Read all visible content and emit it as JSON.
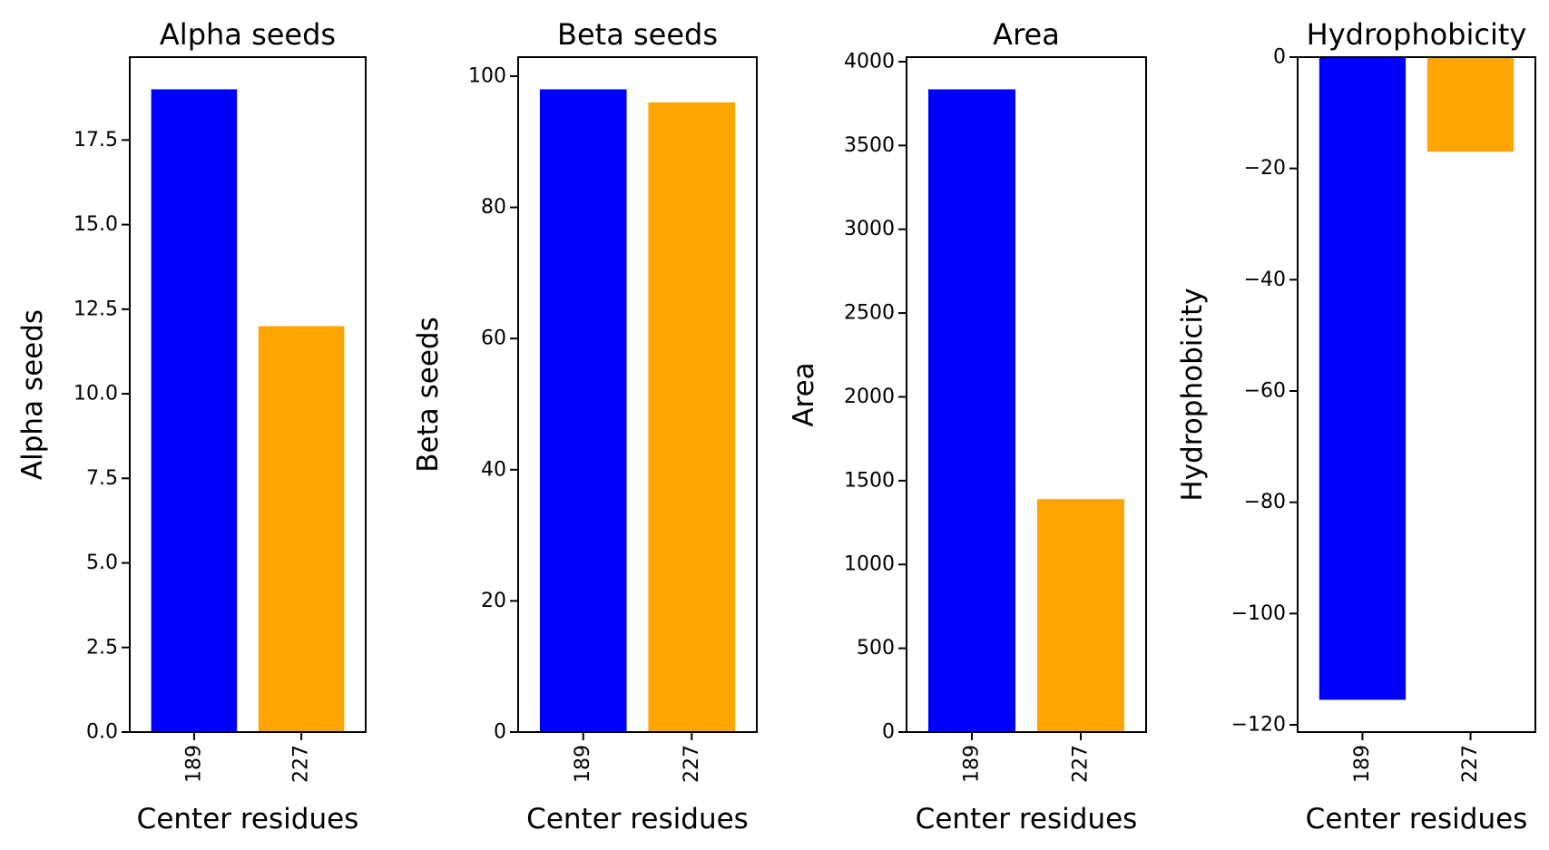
{
  "colors": {
    "series": [
      "#0000ff",
      "#ffa500"
    ],
    "axes": "#000000",
    "background": "#ffffff"
  },
  "chart_data": [
    {
      "type": "bar",
      "title": "Alpha seeds",
      "xlabel": "Center residues",
      "ylabel": "Alpha seeds",
      "categories": [
        "189",
        "227"
      ],
      "values": [
        19,
        12
      ],
      "ylim": [
        0,
        19.95
      ],
      "yticks": [
        0,
        2.5,
        5,
        7.5,
        10,
        12.5,
        15,
        17.5
      ],
      "ytick_labels": [
        "0.0",
        "2.5",
        "5.0",
        "7.5",
        "10.0",
        "12.5",
        "15.0",
        "17.5"
      ],
      "grid": false
    },
    {
      "type": "bar",
      "title": "Beta seeds",
      "xlabel": "Center residues",
      "ylabel": "Beta seeds",
      "categories": [
        "189",
        "227"
      ],
      "values": [
        98,
        96
      ],
      "ylim": [
        0,
        102.9
      ],
      "yticks": [
        0,
        20,
        40,
        60,
        80,
        100
      ],
      "ytick_labels": [
        "0",
        "20",
        "40",
        "60",
        "80",
        "100"
      ],
      "grid": false
    },
    {
      "type": "bar",
      "title": "Area",
      "xlabel": "Center residues",
      "ylabel": "Area",
      "categories": [
        "189",
        "227"
      ],
      "values": [
        3835,
        1390
      ],
      "ylim": [
        0,
        4027
      ],
      "yticks": [
        0,
        500,
        1000,
        1500,
        2000,
        2500,
        3000,
        3500,
        4000
      ],
      "ytick_labels": [
        "0",
        "500",
        "1000",
        "1500",
        "2000",
        "2500",
        "3000",
        "3500",
        "4000"
      ],
      "grid": false
    },
    {
      "type": "bar",
      "title": "Hydrophobicity",
      "xlabel": "Center residues",
      "ylabel": "Hydrophobicity",
      "categories": [
        "189",
        "227"
      ],
      "values": [
        -115.5,
        -17
      ],
      "ylim": [
        -121.3,
        0
      ],
      "yticks": [
        0,
        -20,
        -40,
        -60,
        -80,
        -100,
        -120
      ],
      "ytick_labels": [
        "0",
        "−20",
        "−40",
        "−60",
        "−80",
        "−100",
        "−120"
      ],
      "grid": false
    }
  ]
}
